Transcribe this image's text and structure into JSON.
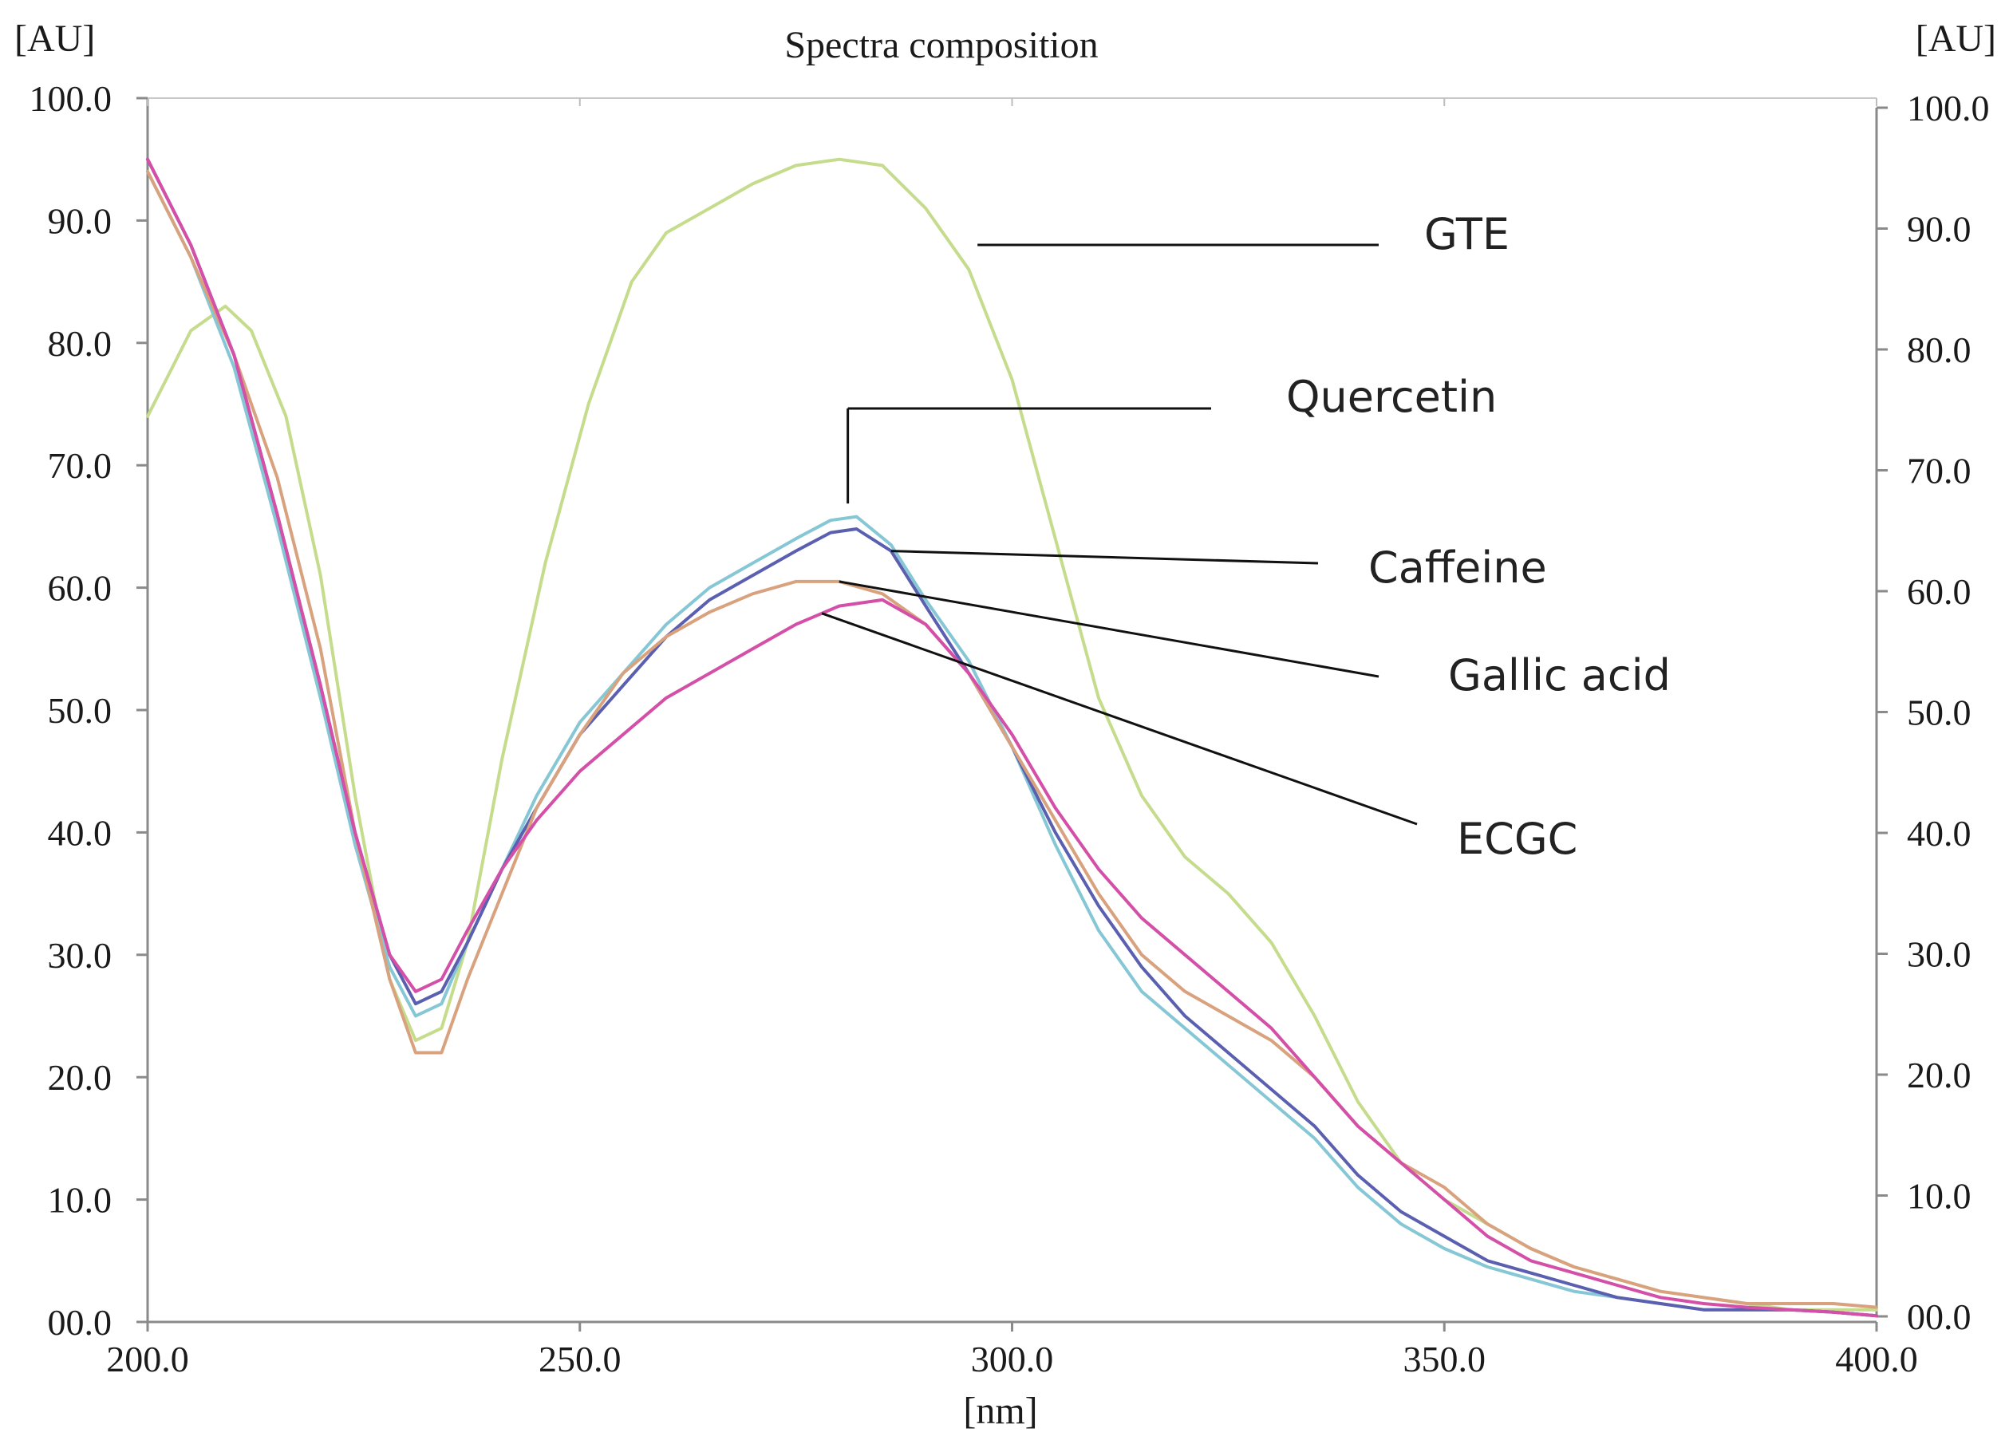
{
  "chart_data": {
    "type": "line",
    "title": "Spectra composition",
    "xlabel": "[nm]",
    "ylabel_left": "[AU]",
    "ylabel_right": "[AU]",
    "xlim": [
      200,
      400
    ],
    "ylim": [
      0,
      100
    ],
    "x_ticks": [
      "200.0",
      "250.0",
      "300.0",
      "350.0",
      "400.0"
    ],
    "y_ticks": [
      "00.0",
      "10.0",
      "20.0",
      "30.0",
      "40.0",
      "50.0",
      "60.0",
      "70.0",
      "80.0",
      "90.0",
      "100.0"
    ],
    "grid": false,
    "series": [
      {
        "name": "GTE",
        "color": "#c5dc8c",
        "points": [
          [
            200,
            74
          ],
          [
            205,
            81
          ],
          [
            209,
            83
          ],
          [
            212,
            81
          ],
          [
            216,
            74
          ],
          [
            220,
            61
          ],
          [
            224,
            43
          ],
          [
            228,
            28
          ],
          [
            231,
            23
          ],
          [
            234,
            24
          ],
          [
            237,
            31
          ],
          [
            241,
            46
          ],
          [
            246,
            62
          ],
          [
            251,
            75
          ],
          [
            256,
            85
          ],
          [
            260,
            89
          ],
          [
            265,
            91
          ],
          [
            270,
            93
          ],
          [
            275,
            94.5
          ],
          [
            280,
            95
          ],
          [
            285,
            94.5
          ],
          [
            290,
            91
          ],
          [
            295,
            86
          ],
          [
            300,
            77
          ],
          [
            305,
            64
          ],
          [
            310,
            51
          ],
          [
            315,
            43
          ],
          [
            320,
            38
          ],
          [
            325,
            35
          ],
          [
            330,
            31
          ],
          [
            335,
            25
          ],
          [
            340,
            18
          ],
          [
            345,
            13
          ],
          [
            350,
            10
          ],
          [
            355,
            8
          ],
          [
            360,
            6
          ],
          [
            365,
            4.5
          ],
          [
            370,
            3.5
          ],
          [
            375,
            2.5
          ],
          [
            380,
            2
          ],
          [
            385,
            1.5
          ],
          [
            390,
            1
          ],
          [
            395,
            1
          ],
          [
            400,
            1
          ]
        ]
      },
      {
        "name": "Quercetin",
        "color": "#86c7d6",
        "points": [
          [
            200,
            94
          ],
          [
            205,
            87
          ],
          [
            210,
            78
          ],
          [
            215,
            65
          ],
          [
            220,
            51
          ],
          [
            224,
            39
          ],
          [
            228,
            29
          ],
          [
            231,
            25
          ],
          [
            234,
            26
          ],
          [
            237,
            31
          ],
          [
            241,
            37
          ],
          [
            245,
            43
          ],
          [
            250,
            49
          ],
          [
            255,
            53
          ],
          [
            260,
            57
          ],
          [
            265,
            60
          ],
          [
            270,
            62
          ],
          [
            275,
            64
          ],
          [
            279,
            65.5
          ],
          [
            282,
            65.8
          ],
          [
            286,
            63.5
          ],
          [
            290,
            59
          ],
          [
            295,
            54
          ],
          [
            300,
            47
          ],
          [
            305,
            39
          ],
          [
            310,
            32
          ],
          [
            315,
            27
          ],
          [
            320,
            24
          ],
          [
            325,
            21
          ],
          [
            330,
            18
          ],
          [
            335,
            15
          ],
          [
            340,
            11
          ],
          [
            345,
            8
          ],
          [
            350,
            6
          ],
          [
            355,
            4.5
          ],
          [
            360,
            3.5
          ],
          [
            365,
            2.5
          ],
          [
            370,
            2
          ],
          [
            375,
            1.5
          ],
          [
            380,
            1
          ],
          [
            385,
            1
          ],
          [
            390,
            1
          ],
          [
            395,
            0.8
          ],
          [
            400,
            0.5
          ]
        ]
      },
      {
        "name": "Caffeine",
        "color": "#5a5fb0",
        "points": [
          [
            200,
            95
          ],
          [
            205,
            88
          ],
          [
            210,
            79
          ],
          [
            215,
            66
          ],
          [
            220,
            52
          ],
          [
            224,
            40
          ],
          [
            228,
            30
          ],
          [
            231,
            26
          ],
          [
            234,
            27
          ],
          [
            237,
            31
          ],
          [
            241,
            37
          ],
          [
            245,
            42
          ],
          [
            250,
            48
          ],
          [
            255,
            52
          ],
          [
            260,
            56
          ],
          [
            265,
            59
          ],
          [
            270,
            61
          ],
          [
            275,
            63
          ],
          [
            279,
            64.5
          ],
          [
            282,
            64.8
          ],
          [
            286,
            63
          ],
          [
            290,
            58.5
          ],
          [
            295,
            53
          ],
          [
            300,
            47
          ],
          [
            305,
            40
          ],
          [
            310,
            34
          ],
          [
            315,
            29
          ],
          [
            320,
            25
          ],
          [
            325,
            22
          ],
          [
            330,
            19
          ],
          [
            335,
            16
          ],
          [
            340,
            12
          ],
          [
            345,
            9
          ],
          [
            350,
            7
          ],
          [
            355,
            5
          ],
          [
            360,
            4
          ],
          [
            365,
            3
          ],
          [
            370,
            2
          ],
          [
            375,
            1.5
          ],
          [
            380,
            1
          ],
          [
            385,
            1
          ],
          [
            390,
            1
          ],
          [
            395,
            0.8
          ],
          [
            400,
            0.5
          ]
        ]
      },
      {
        "name": "Gallic acid",
        "color": "#d9a27f",
        "points": [
          [
            200,
            94
          ],
          [
            205,
            87
          ],
          [
            210,
            79
          ],
          [
            215,
            69
          ],
          [
            220,
            55
          ],
          [
            224,
            40
          ],
          [
            228,
            28
          ],
          [
            231,
            22
          ],
          [
            234,
            22
          ],
          [
            237,
            28
          ],
          [
            241,
            35
          ],
          [
            245,
            42
          ],
          [
            250,
            48
          ],
          [
            255,
            53
          ],
          [
            260,
            56
          ],
          [
            265,
            58
          ],
          [
            270,
            59.5
          ],
          [
            275,
            60.5
          ],
          [
            280,
            60.5
          ],
          [
            285,
            59.5
          ],
          [
            290,
            57
          ],
          [
            295,
            53
          ],
          [
            300,
            47
          ],
          [
            305,
            41
          ],
          [
            310,
            35
          ],
          [
            315,
            30
          ],
          [
            320,
            27
          ],
          [
            325,
            25
          ],
          [
            330,
            23
          ],
          [
            335,
            20
          ],
          [
            340,
            16
          ],
          [
            345,
            13
          ],
          [
            350,
            11
          ],
          [
            355,
            8
          ],
          [
            360,
            6
          ],
          [
            365,
            4.5
          ],
          [
            370,
            3.5
          ],
          [
            375,
            2.5
          ],
          [
            380,
            2
          ],
          [
            385,
            1.5
          ],
          [
            390,
            1.5
          ],
          [
            395,
            1.5
          ],
          [
            400,
            1.2
          ]
        ]
      },
      {
        "name": "ECGC",
        "color": "#d44fa8",
        "points": [
          [
            200,
            95
          ],
          [
            205,
            88
          ],
          [
            210,
            79
          ],
          [
            215,
            66
          ],
          [
            220,
            52
          ],
          [
            224,
            40
          ],
          [
            228,
            30
          ],
          [
            231,
            27
          ],
          [
            234,
            28
          ],
          [
            237,
            32
          ],
          [
            241,
            37
          ],
          [
            245,
            41
          ],
          [
            250,
            45
          ],
          [
            255,
            48
          ],
          [
            260,
            51
          ],
          [
            265,
            53
          ],
          [
            270,
            55
          ],
          [
            275,
            57
          ],
          [
            280,
            58.5
          ],
          [
            285,
            59
          ],
          [
            290,
            57
          ],
          [
            295,
            53
          ],
          [
            300,
            48
          ],
          [
            305,
            42
          ],
          [
            310,
            37
          ],
          [
            315,
            33
          ],
          [
            320,
            30
          ],
          [
            325,
            27
          ],
          [
            330,
            24
          ],
          [
            335,
            20
          ],
          [
            340,
            16
          ],
          [
            345,
            13
          ],
          [
            350,
            10
          ],
          [
            355,
            7
          ],
          [
            360,
            5
          ],
          [
            365,
            4
          ],
          [
            370,
            3
          ],
          [
            375,
            2
          ],
          [
            380,
            1.5
          ],
          [
            385,
            1.2
          ],
          [
            390,
            1
          ],
          [
            395,
            0.8
          ],
          [
            400,
            0.5
          ]
        ]
      }
    ],
    "annotations": [
      {
        "label": "GTE",
        "series": "GTE",
        "at_x": 296
      },
      {
        "label": "Quercetin",
        "series": "Quercetin",
        "at_x": 281
      },
      {
        "label": "Caffeine",
        "series": "Caffeine",
        "at_x": 286
      },
      {
        "label": "Gallic acid",
        "series": "Gallic acid",
        "at_x": 280
      },
      {
        "label": "ECGC",
        "series": "ECGC",
        "at_x": 278
      }
    ]
  }
}
